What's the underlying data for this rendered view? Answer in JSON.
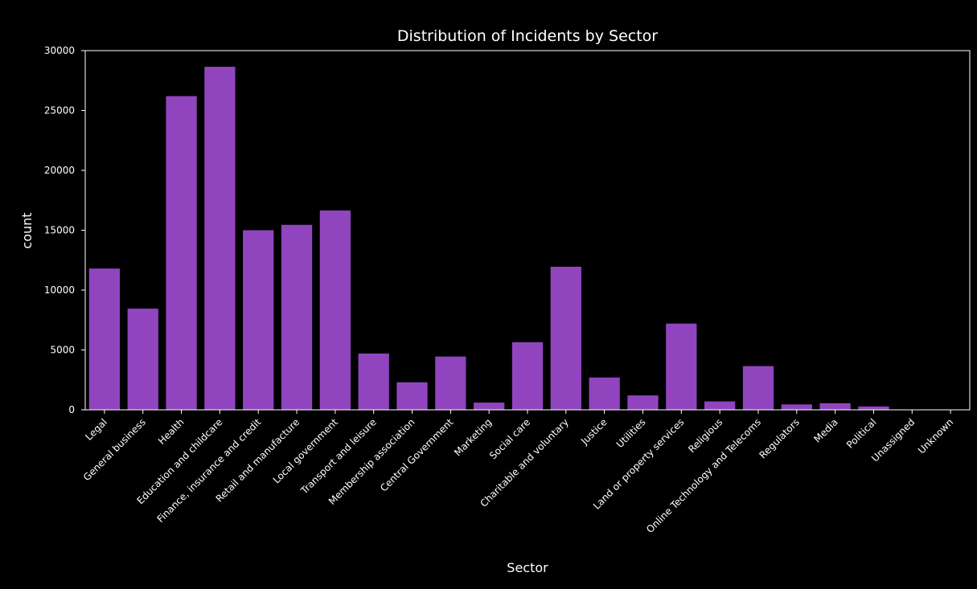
{
  "chart_data": {
    "type": "bar",
    "title": "Distribution of Incidents by Sector",
    "xlabel": "Sector",
    "ylabel": "count",
    "ylim": [
      0,
      30000
    ],
    "yticks": [
      "0",
      "5000",
      "10000",
      "15000",
      "20000",
      "25000",
      "30000"
    ],
    "grid": false,
    "bar_color": "#9045BE",
    "background_color": "#000000",
    "text_color": "#ffffff",
    "categories": [
      "Legal",
      "General business",
      "Health",
      "Education and childcare",
      "Finance, insurance and credit",
      "Retail and manufacture",
      "Local government",
      "Transport and leisure",
      "Membership association",
      "Central Government",
      "Marketing",
      "Social care",
      "Charitable and voluntary",
      "Justice",
      "Utilities",
      "Land or property services",
      "Religious",
      "Online Technology and Telecoms",
      "Regulators",
      "Media",
      "Political",
      "Unassigned",
      "Unknown"
    ],
    "values": [
      11800,
      8450,
      26200,
      28650,
      15000,
      15450,
      16650,
      4700,
      2300,
      4450,
      600,
      5650,
      11950,
      2700,
      1200,
      7200,
      700,
      3650,
      450,
      550,
      280,
      0,
      0
    ]
  }
}
